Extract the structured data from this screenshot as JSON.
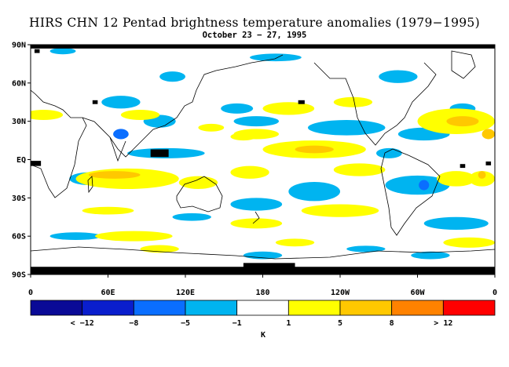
{
  "title": "HIRS CHN 12 Pentad brightness temperature anomalies (1979−1995)",
  "subtitle": "October 23 − 27, 1995",
  "chart_data": {
    "type": "heatmap",
    "title": "HIRS CHN 12 Pentad brightness temperature anomalies (1979−1995)",
    "subtitle": "October 23 − 27, 1995",
    "x_ticks": [
      "0",
      "60E",
      "120E",
      "180",
      "120W",
      "60W",
      "0"
    ],
    "x_tick_values": [
      0,
      60,
      120,
      180,
      240,
      300,
      360
    ],
    "y_ticks": [
      "90N",
      "60N",
      "30N",
      "EQ",
      "30S",
      "60S",
      "90S"
    ],
    "y_tick_values": [
      90,
      60,
      30,
      0,
      -30,
      -60,
      -90
    ],
    "xlim": [
      0,
      360
    ],
    "ylim": [
      -90,
      90
    ],
    "colorbar": {
      "unit": "K",
      "labels": [
        "< −12",
        "−8",
        "−5",
        "−1",
        "1",
        "5",
        "8",
        "> 12"
      ],
      "colors": [
        "#0a0a96",
        "#0a1ecd",
        "#0a6eff",
        "#00b4f0",
        "#ffffff",
        "#ffff00",
        "#ffc800",
        "#ff8200",
        "#ff0000"
      ]
    },
    "missing_color": "#000000",
    "anomaly_regions_K": [
      {
        "lon": 25,
        "lat": 85,
        "w": 20,
        "h": 5,
        "v": -3
      },
      {
        "lon": 70,
        "lat": 45,
        "w": 30,
        "h": 10,
        "v": -3
      },
      {
        "lon": 110,
        "lat": 65,
        "w": 20,
        "h": 8,
        "v": -3
      },
      {
        "lon": 190,
        "lat": 80,
        "w": 40,
        "h": 6,
        "v": -3
      },
      {
        "lon": 285,
        "lat": 65,
        "w": 30,
        "h": 10,
        "v": -3
      },
      {
        "lon": 245,
        "lat": 25,
        "w": 60,
        "h": 12,
        "v": -3
      },
      {
        "lon": 335,
        "lat": 40,
        "w": 20,
        "h": 8,
        "v": -3
      },
      {
        "lon": 160,
        "lat": 40,
        "w": 25,
        "h": 8,
        "v": -3
      },
      {
        "lon": 100,
        "lat": 30,
        "w": 25,
        "h": 10,
        "v": -3
      },
      {
        "lon": 70,
        "lat": 20,
        "w": 12,
        "h": 8,
        "v": -6
      },
      {
        "lon": 105,
        "lat": 5,
        "w": 60,
        "h": 8,
        "v": -3
      },
      {
        "lon": 175,
        "lat": 30,
        "w": 35,
        "h": 8,
        "v": -3
      },
      {
        "lon": 305,
        "lat": 20,
        "w": 40,
        "h": 10,
        "v": -3
      },
      {
        "lon": 278,
        "lat": 5,
        "w": 20,
        "h": 8,
        "v": -3
      },
      {
        "lon": 300,
        "lat": -20,
        "w": 50,
        "h": 15,
        "v": -3
      },
      {
        "lon": 305,
        "lat": -20,
        "w": 8,
        "h": 8,
        "v": -6
      },
      {
        "lon": 45,
        "lat": -15,
        "w": 30,
        "h": 10,
        "v": -3
      },
      {
        "lon": 220,
        "lat": -25,
        "w": 40,
        "h": 15,
        "v": -3
      },
      {
        "lon": 175,
        "lat": -35,
        "w": 40,
        "h": 10,
        "v": -3
      },
      {
        "lon": 330,
        "lat": -50,
        "w": 50,
        "h": 10,
        "v": -3
      },
      {
        "lon": 35,
        "lat": -60,
        "w": 40,
        "h": 6,
        "v": -3
      },
      {
        "lon": 125,
        "lat": -45,
        "w": 30,
        "h": 6,
        "v": -3
      },
      {
        "lon": 180,
        "lat": -75,
        "w": 30,
        "h": 6,
        "v": -3
      },
      {
        "lon": 310,
        "lat": -75,
        "w": 30,
        "h": 6,
        "v": -3
      },
      {
        "lon": 260,
        "lat": -70,
        "w": 30,
        "h": 5,
        "v": -3
      },
      {
        "lon": 10,
        "lat": 35,
        "w": 30,
        "h": 8,
        "v": 3
      },
      {
        "lon": 85,
        "lat": 35,
        "w": 30,
        "h": 8,
        "v": 3
      },
      {
        "lon": 140,
        "lat": 25,
        "w": 20,
        "h": 6,
        "v": 3
      },
      {
        "lon": 165,
        "lat": 18,
        "w": 20,
        "h": 6,
        "v": 3
      },
      {
        "lon": 200,
        "lat": 40,
        "w": 40,
        "h": 10,
        "v": 3
      },
      {
        "lon": 250,
        "lat": 45,
        "w": 30,
        "h": 8,
        "v": 3
      },
      {
        "lon": 330,
        "lat": 30,
        "w": 60,
        "h": 20,
        "v": 3
      },
      {
        "lon": 335,
        "lat": 30,
        "w": 25,
        "h": 8,
        "v": 6
      },
      {
        "lon": 355,
        "lat": 20,
        "w": 10,
        "h": 8,
        "v": 6
      },
      {
        "lon": 175,
        "lat": 20,
        "w": 35,
        "h": 8,
        "v": 3
      },
      {
        "lon": 220,
        "lat": 8,
        "w": 80,
        "h": 14,
        "v": 3
      },
      {
        "lon": 220,
        "lat": 8,
        "w": 30,
        "h": 6,
        "v": 6
      },
      {
        "lon": 75,
        "lat": -15,
        "w": 80,
        "h": 16,
        "v": 3
      },
      {
        "lon": 65,
        "lat": -12,
        "w": 40,
        "h": 6,
        "v": 6
      },
      {
        "lon": 130,
        "lat": -18,
        "w": 30,
        "h": 10,
        "v": 3
      },
      {
        "lon": 170,
        "lat": -10,
        "w": 30,
        "h": 10,
        "v": 3
      },
      {
        "lon": 255,
        "lat": -8,
        "w": 40,
        "h": 10,
        "v": 3
      },
      {
        "lon": 330,
        "lat": -15,
        "w": 30,
        "h": 12,
        "v": 3
      },
      {
        "lon": 350,
        "lat": -15,
        "w": 20,
        "h": 12,
        "v": 3
      },
      {
        "lon": 350,
        "lat": -12,
        "w": 6,
        "h": 6,
        "v": 6
      },
      {
        "lon": 240,
        "lat": -40,
        "w": 60,
        "h": 10,
        "v": 3
      },
      {
        "lon": 175,
        "lat": -50,
        "w": 40,
        "h": 8,
        "v": 3
      },
      {
        "lon": 60,
        "lat": -40,
        "w": 40,
        "h": 6,
        "v": 3
      },
      {
        "lon": 80,
        "lat": -60,
        "w": 60,
        "h": 8,
        "v": 3
      },
      {
        "lon": 340,
        "lat": -65,
        "w": 40,
        "h": 8,
        "v": 3
      },
      {
        "lon": 100,
        "lat": -70,
        "w": 30,
        "h": 6,
        "v": 3
      },
      {
        "lon": 205,
        "lat": -65,
        "w": 30,
        "h": 6,
        "v": 3
      }
    ],
    "missing_regions": [
      {
        "lon": 180,
        "lat": 88.5,
        "w": 360,
        "h": 3
      },
      {
        "lon": 180,
        "lat": -87,
        "w": 360,
        "h": 6
      },
      {
        "lon": 185,
        "lat": -83,
        "w": 40,
        "h": 4
      },
      {
        "lon": 100,
        "lat": 5,
        "w": 14,
        "h": 6
      },
      {
        "lon": 4,
        "lat": -3,
        "w": 8,
        "h": 4
      },
      {
        "lon": 5,
        "lat": 85,
        "w": 4,
        "h": 3
      },
      {
        "lon": 335,
        "lat": -5,
        "w": 4,
        "h": 3
      },
      {
        "lon": 355,
        "lat": -3,
        "w": 4,
        "h": 3
      },
      {
        "lon": 50,
        "lat": 45,
        "w": 4,
        "h": 3
      },
      {
        "lon": 210,
        "lat": 45,
        "w": 5,
        "h": 3
      }
    ]
  }
}
